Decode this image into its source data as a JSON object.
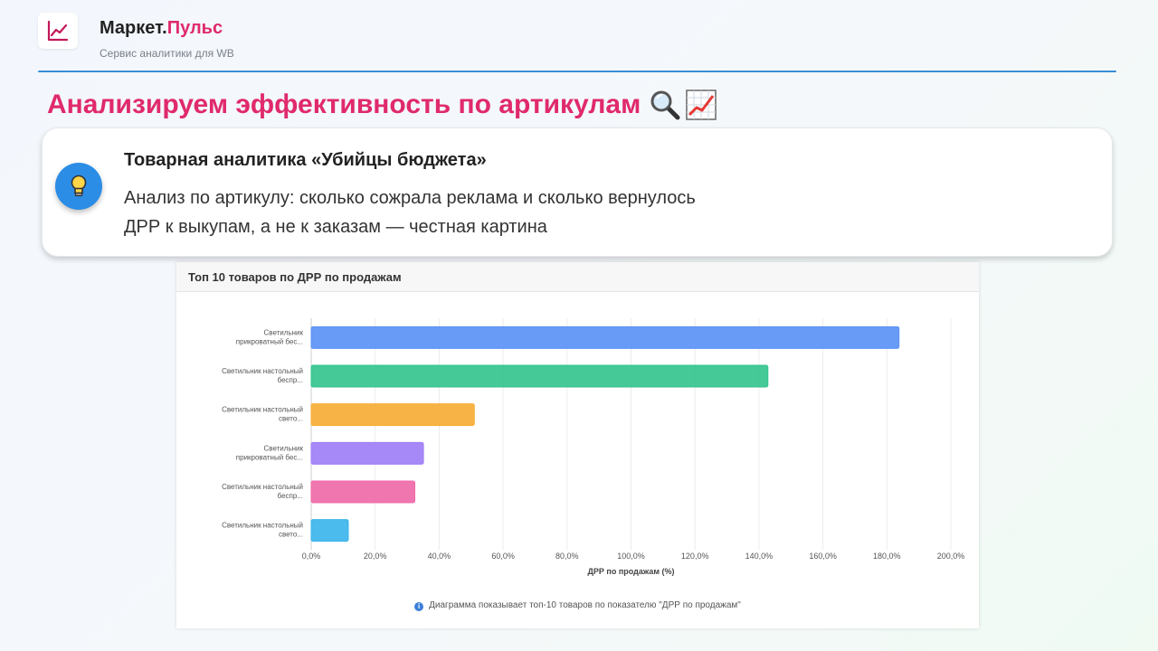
{
  "header": {
    "brand_main": "Маркет.",
    "brand_accent": "Пульс",
    "tagline": "Сервис аналитики для WB"
  },
  "headline": {
    "text": "Анализируем эффективность по артикулам",
    "icons": [
      "magnifier-icon",
      "chart-increasing-icon"
    ]
  },
  "card": {
    "title": "Товарная аналитика «Убийцы бюджета»",
    "line1": "Анализ по артикулу: сколько сожрала реклама и сколько вернулось",
    "line2": "ДРР к выкупам, а не к заказам — честная картина",
    "icon": "lightbulb-icon"
  },
  "panel": {
    "title": "Топ 10 товаров по ДРР по продажам",
    "note": "Диаграмма показывает топ-10 товаров по показателю \"ДРР по продажам\""
  },
  "colors": {
    "accent": "#e02a6b",
    "header_line": "#3a8ed6",
    "bars": [
      "#5b93f5",
      "#34c48e",
      "#f6ad35",
      "#a07ef6",
      "#ef6aa9",
      "#3cb4ea"
    ]
  },
  "chart_data": {
    "type": "bar",
    "orientation": "horizontal",
    "categories": [
      [
        "Светильник",
        "прикроватный бес..."
      ],
      [
        "Светильник настольный",
        "беспр..."
      ],
      [
        "Светильник настольный",
        "свето..."
      ],
      [
        "Светильник",
        "прикроватный бес..."
      ],
      [
        "Светильник настольный",
        "беспр..."
      ],
      [
        "Светильник настольный",
        "свето..."
      ]
    ],
    "values": [
      183.8,
      142.8,
      51.0,
      35.1,
      32.4,
      11.6
    ],
    "xlabel": "ДРР по продажам (%)",
    "xlim": [
      0,
      200
    ],
    "xticks": [
      "0,0%",
      "20,0%",
      "40,0%",
      "60,0%",
      "80,0%",
      "100,0%",
      "120,0%",
      "140,0%",
      "160,0%",
      "180,0%",
      "200,0%"
    ],
    "grid": true
  }
}
